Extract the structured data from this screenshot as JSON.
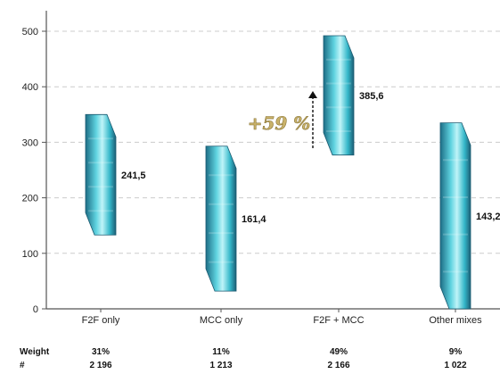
{
  "chart_data": {
    "type": "bar",
    "categories": [
      "F2F only",
      "MCC only",
      "F2F + MCC",
      "Other mixes"
    ],
    "ranges": [
      {
        "top": 350,
        "bottom": 133
      },
      {
        "top": 293,
        "bottom": 32
      },
      {
        "top": 492,
        "bottom": 277
      },
      {
        "top": 335,
        "bottom": 0
      }
    ],
    "value_labels": [
      "241,5",
      "161,4",
      "385,6",
      "143,2"
    ],
    "ylim": [
      0,
      500
    ],
    "yticks": [
      0,
      100,
      200,
      300,
      400,
      500
    ],
    "ytick_labels": [
      "0",
      "100",
      "200",
      "300",
      "400",
      "500"
    ],
    "grid": true,
    "annotation": {
      "text": "+59 %",
      "category": "F2F + MCC"
    },
    "footer": {
      "rows": [
        {
          "label": "Weight",
          "values": [
            "31%",
            "11%",
            "49%",
            "9%"
          ]
        },
        {
          "label": "#",
          "values": [
            "2 196",
            "1 213",
            "2 166",
            "1 022"
          ]
        }
      ]
    },
    "colors": {
      "bar_light": "#bff4f8",
      "bar_mid": "#34b7c9",
      "bar_dark": "#1d5e76",
      "grid": "#cccccc",
      "axis": "#555555"
    }
  }
}
